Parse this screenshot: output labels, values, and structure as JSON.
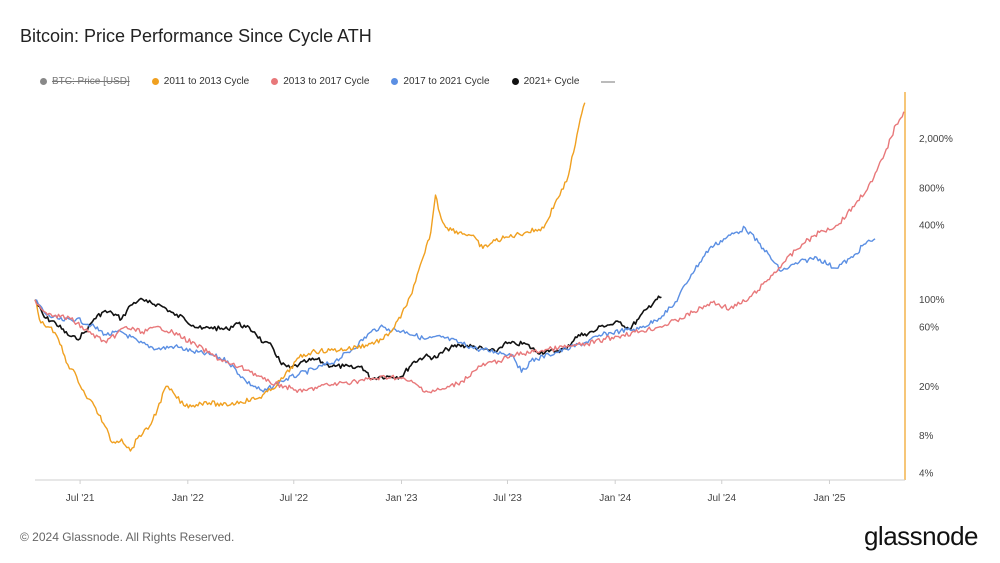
{
  "title": "Bitcoin: Price Performance Since Cycle ATH",
  "legend": [
    {
      "label": "BTC: Price [USD]",
      "color": "#888888",
      "hidden": true
    },
    {
      "label": "2011 to 2013 Cycle",
      "color": "#f0a020",
      "hidden": false
    },
    {
      "label": "2013 to 2017 Cycle",
      "color": "#e8787a",
      "hidden": false
    },
    {
      "label": "2017 to 2021 Cycle",
      "color": "#5b8fe3",
      "hidden": false
    },
    {
      "label": "2021+ Cycle",
      "color": "#111111",
      "hidden": false
    }
  ],
  "footer": {
    "copyright": "© 2024 Glassnode. All Rights Reserved.",
    "brand": "glassnode"
  },
  "chart_data": {
    "type": "line",
    "x_axis": {
      "range": [
        "2021-04-15",
        "2025-05-10"
      ],
      "ticks": [
        {
          "date": "2021-07-01",
          "label": "Jul '21"
        },
        {
          "date": "2022-01-01",
          "label": "Jan '22"
        },
        {
          "date": "2022-07-01",
          "label": "Jul '22"
        },
        {
          "date": "2023-01-01",
          "label": "Jan '23"
        },
        {
          "date": "2023-07-01",
          "label": "Jul '23"
        },
        {
          "date": "2024-01-01",
          "label": "Jan '24"
        },
        {
          "date": "2024-07-01",
          "label": "Jul '24"
        },
        {
          "date": "2025-01-01",
          "label": "Jan '25"
        }
      ]
    },
    "y_axis": {
      "scale": "log",
      "unit": "%",
      "range": [
        3.5,
        4500
      ],
      "ticks": [
        {
          "value": 4,
          "label": "4%"
        },
        {
          "value": 8,
          "label": "8%"
        },
        {
          "value": 20,
          "label": "20%"
        },
        {
          "value": 60,
          "label": "60%"
        },
        {
          "value": 100,
          "label": "100%"
        },
        {
          "value": 400,
          "label": "400%"
        },
        {
          "value": 800,
          "label": "800%"
        },
        {
          "value": 2000,
          "label": "2,000%"
        }
      ]
    },
    "grid": false,
    "legend_position": "top-left",
    "series": [
      {
        "name": "2011 to 2013 Cycle",
        "color": "#f0a020",
        "points": [
          [
            "2021-04-15",
            100
          ],
          [
            "2021-04-25",
            65
          ],
          [
            "2021-05-10",
            60
          ],
          [
            "2021-05-25",
            48
          ],
          [
            "2021-06-10",
            30
          ],
          [
            "2021-06-25",
            24
          ],
          [
            "2021-07-10",
            17
          ],
          [
            "2021-07-25",
            14
          ],
          [
            "2021-08-10",
            10
          ],
          [
            "2021-08-25",
            7
          ],
          [
            "2021-09-10",
            7.5
          ],
          [
            "2021-09-25",
            6
          ],
          [
            "2021-10-10",
            8
          ],
          [
            "2021-10-25",
            9
          ],
          [
            "2021-11-10",
            13
          ],
          [
            "2021-11-25",
            20
          ],
          [
            "2021-12-10",
            17
          ],
          [
            "2021-12-25",
            14
          ],
          [
            "2022-01-10",
            14
          ],
          [
            "2022-02-01",
            15
          ],
          [
            "2022-03-01",
            14
          ],
          [
            "2022-04-01",
            15
          ],
          [
            "2022-05-01",
            16
          ],
          [
            "2022-05-25",
            19
          ],
          [
            "2022-06-15",
            24
          ],
          [
            "2022-07-10",
            34
          ],
          [
            "2022-08-01",
            38
          ],
          [
            "2022-09-01",
            39
          ],
          [
            "2022-10-01",
            40
          ],
          [
            "2022-11-01",
            43
          ],
          [
            "2022-12-01",
            48
          ],
          [
            "2022-12-20",
            60
          ],
          [
            "2023-01-10",
            90
          ],
          [
            "2023-01-25",
            140
          ],
          [
            "2023-02-10",
            240
          ],
          [
            "2023-02-20",
            350
          ],
          [
            "2023-02-28",
            700
          ],
          [
            "2023-03-10",
            450
          ],
          [
            "2023-03-20",
            380
          ],
          [
            "2023-04-10",
            350
          ],
          [
            "2023-05-01",
            330
          ],
          [
            "2023-05-20",
            260
          ],
          [
            "2023-06-10",
            300
          ],
          [
            "2023-07-01",
            320
          ],
          [
            "2023-08-01",
            350
          ],
          [
            "2023-09-01",
            380
          ],
          [
            "2023-09-20",
            600
          ],
          [
            "2023-10-10",
            900
          ],
          [
            "2023-10-25",
            1800
          ],
          [
            "2023-11-05",
            3200
          ],
          [
            "2023-11-10",
            3900
          ]
        ]
      },
      {
        "name": "2013 to 2017 Cycle",
        "color": "#e8787a",
        "points": [
          [
            "2021-04-15",
            100
          ],
          [
            "2021-05-01",
            80
          ],
          [
            "2021-05-20",
            75
          ],
          [
            "2021-06-15",
            70
          ],
          [
            "2021-07-15",
            55
          ],
          [
            "2021-08-15",
            45
          ],
          [
            "2021-09-15",
            60
          ],
          [
            "2021-10-15",
            55
          ],
          [
            "2021-11-15",
            60
          ],
          [
            "2021-12-15",
            52
          ],
          [
            "2022-01-15",
            43
          ],
          [
            "2022-02-15",
            35
          ],
          [
            "2022-03-15",
            30
          ],
          [
            "2022-04-15",
            27
          ],
          [
            "2022-05-15",
            22
          ],
          [
            "2022-06-15",
            20
          ],
          [
            "2022-07-15",
            18
          ],
          [
            "2022-08-15",
            20
          ],
          [
            "2022-09-15",
            21
          ],
          [
            "2022-10-15",
            22
          ],
          [
            "2022-11-15",
            23
          ],
          [
            "2022-12-15",
            24
          ],
          [
            "2023-01-15",
            22
          ],
          [
            "2023-02-15",
            18
          ],
          [
            "2023-03-15",
            19
          ],
          [
            "2023-04-15",
            22
          ],
          [
            "2023-05-15",
            29
          ],
          [
            "2023-06-15",
            32
          ],
          [
            "2023-07-15",
            36
          ],
          [
            "2023-08-15",
            38
          ],
          [
            "2023-09-15",
            40
          ],
          [
            "2023-10-15",
            42
          ],
          [
            "2023-11-15",
            44
          ],
          [
            "2023-12-15",
            48
          ],
          [
            "2024-01-15",
            52
          ],
          [
            "2024-02-15",
            56
          ],
          [
            "2024-03-15",
            60
          ],
          [
            "2024-04-15",
            68
          ],
          [
            "2024-05-15",
            80
          ],
          [
            "2024-06-15",
            95
          ],
          [
            "2024-07-15",
            85
          ],
          [
            "2024-08-15",
            100
          ],
          [
            "2024-09-15",
            140
          ],
          [
            "2024-10-15",
            200
          ],
          [
            "2024-11-15",
            280
          ],
          [
            "2024-12-15",
            350
          ],
          [
            "2025-01-15",
            400
          ],
          [
            "2025-02-15",
            600
          ],
          [
            "2025-03-15",
            900
          ],
          [
            "2025-04-05",
            1500
          ],
          [
            "2025-04-25",
            2600
          ],
          [
            "2025-05-08",
            3300
          ]
        ]
      },
      {
        "name": "2017 to 2021 Cycle",
        "color": "#5b8fe3",
        "points": [
          [
            "2021-04-15",
            100
          ],
          [
            "2021-05-05",
            75
          ],
          [
            "2021-06-01",
            68
          ],
          [
            "2021-06-25",
            70
          ],
          [
            "2021-07-20",
            62
          ],
          [
            "2021-08-15",
            52
          ],
          [
            "2021-09-10",
            55
          ],
          [
            "2021-10-10",
            45
          ],
          [
            "2021-11-10",
            40
          ],
          [
            "2021-12-10",
            42
          ],
          [
            "2022-01-10",
            38
          ],
          [
            "2022-02-10",
            36
          ],
          [
            "2022-03-10",
            32
          ],
          [
            "2022-04-10",
            22
          ],
          [
            "2022-05-10",
            18
          ],
          [
            "2022-06-10",
            22
          ],
          [
            "2022-07-10",
            25
          ],
          [
            "2022-08-10",
            28
          ],
          [
            "2022-09-10",
            32
          ],
          [
            "2022-10-10",
            40
          ],
          [
            "2022-11-10",
            55
          ],
          [
            "2022-11-25",
            60
          ],
          [
            "2022-12-10",
            58
          ],
          [
            "2023-01-10",
            55
          ],
          [
            "2023-02-10",
            48
          ],
          [
            "2023-03-10",
            50
          ],
          [
            "2023-04-10",
            45
          ],
          [
            "2023-05-10",
            40
          ],
          [
            "2023-06-10",
            38
          ],
          [
            "2023-07-10",
            36
          ],
          [
            "2023-07-25",
            26
          ],
          [
            "2023-08-10",
            32
          ],
          [
            "2023-09-10",
            36
          ],
          [
            "2023-10-10",
            40
          ],
          [
            "2023-11-10",
            45
          ],
          [
            "2023-12-10",
            52
          ],
          [
            "2024-01-10",
            56
          ],
          [
            "2024-02-10",
            58
          ],
          [
            "2024-03-10",
            68
          ],
          [
            "2024-04-10",
            90
          ],
          [
            "2024-05-10",
            160
          ],
          [
            "2024-06-10",
            260
          ],
          [
            "2024-07-10",
            320
          ],
          [
            "2024-08-10",
            380
          ],
          [
            "2024-09-10",
            260
          ],
          [
            "2024-10-10",
            170
          ],
          [
            "2024-11-10",
            200
          ],
          [
            "2024-12-10",
            220
          ],
          [
            "2025-01-10",
            180
          ],
          [
            "2025-02-10",
            220
          ],
          [
            "2025-03-01",
            280
          ],
          [
            "2025-03-20",
            310
          ]
        ]
      },
      {
        "name": "2021+ Cycle",
        "color": "#111111",
        "points": [
          [
            "2021-04-15",
            100
          ],
          [
            "2021-05-01",
            72
          ],
          [
            "2021-05-20",
            65
          ],
          [
            "2021-06-10",
            52
          ],
          [
            "2021-06-25",
            48
          ],
          [
            "2021-07-10",
            55
          ],
          [
            "2021-07-25",
            70
          ],
          [
            "2021-08-10",
            80
          ],
          [
            "2021-08-25",
            78
          ],
          [
            "2021-09-10",
            70
          ],
          [
            "2021-09-25",
            90
          ],
          [
            "2021-10-10",
            100
          ],
          [
            "2021-10-25",
            95
          ],
          [
            "2021-11-10",
            92
          ],
          [
            "2021-11-25",
            85
          ],
          [
            "2021-12-10",
            75
          ],
          [
            "2021-12-25",
            72
          ],
          [
            "2022-01-10",
            62
          ],
          [
            "2022-01-25",
            58
          ],
          [
            "2022-02-10",
            60
          ],
          [
            "2022-02-25",
            58
          ],
          [
            "2022-03-10",
            58
          ],
          [
            "2022-03-25",
            65
          ],
          [
            "2022-04-10",
            60
          ],
          [
            "2022-04-25",
            55
          ],
          [
            "2022-05-10",
            45
          ],
          [
            "2022-05-25",
            42
          ],
          [
            "2022-06-10",
            30
          ],
          [
            "2022-06-25",
            28
          ],
          [
            "2022-07-10",
            30
          ],
          [
            "2022-07-25",
            32
          ],
          [
            "2022-08-10",
            33
          ],
          [
            "2022-08-25",
            30
          ],
          [
            "2022-09-10",
            29
          ],
          [
            "2022-09-25",
            29
          ],
          [
            "2022-10-10",
            28
          ],
          [
            "2022-10-25",
            29
          ],
          [
            "2022-11-10",
            23
          ],
          [
            "2022-11-25",
            24
          ],
          [
            "2022-12-10",
            24
          ],
          [
            "2023-01-01",
            24
          ],
          [
            "2023-01-20",
            31
          ],
          [
            "2023-02-10",
            35
          ],
          [
            "2023-03-01",
            34
          ],
          [
            "2023-03-20",
            40
          ],
          [
            "2023-04-10",
            43
          ],
          [
            "2023-05-01",
            42
          ],
          [
            "2023-05-20",
            40
          ],
          [
            "2023-06-10",
            38
          ],
          [
            "2023-06-25",
            44
          ],
          [
            "2023-07-15",
            44
          ],
          [
            "2023-08-01",
            44
          ],
          [
            "2023-08-20",
            38
          ],
          [
            "2023-09-10",
            38
          ],
          [
            "2023-09-25",
            39
          ],
          [
            "2023-10-10",
            40
          ],
          [
            "2023-10-25",
            50
          ],
          [
            "2023-11-10",
            53
          ],
          [
            "2023-11-25",
            55
          ],
          [
            "2023-12-10",
            62
          ],
          [
            "2023-12-25",
            63
          ],
          [
            "2024-01-10",
            66
          ],
          [
            "2024-01-25",
            58
          ],
          [
            "2024-02-10",
            70
          ],
          [
            "2024-02-25",
            85
          ],
          [
            "2024-03-10",
            100
          ],
          [
            "2024-03-20",
            105
          ]
        ]
      }
    ]
  }
}
